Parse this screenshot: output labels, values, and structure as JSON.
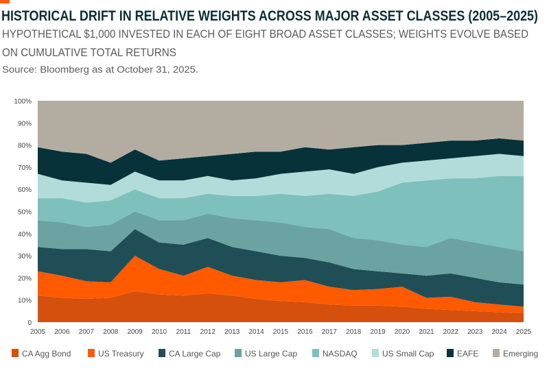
{
  "header": {
    "title": "HISTORICAL DRIFT IN RELATIVE WEIGHTS ACROSS MAJOR ASSET CLASSES (2005–2025)",
    "subtitle_line1": "HYPOTHETICAL $1,000 INVESTED IN EACH OF EIGHT BROAD ASSET CLASSES; WEIGHTS EVOLVE BASED",
    "subtitle_line2": "ON CUMULATIVE TOTAL RETURNS",
    "source": "Source: Bloomberg as at October 31, 2025.",
    "accent_color": "#ff5a00"
  },
  "chart_data": {
    "type": "area",
    "stacked": true,
    "normalized": true,
    "x": [
      2005,
      2006,
      2007,
      2008,
      2009,
      2010,
      2011,
      2012,
      2013,
      2014,
      2015,
      2016,
      2017,
      2018,
      2019,
      2020,
      2021,
      2022,
      2023,
      2024,
      2025
    ],
    "x_tick_labels": [
      "2005",
      "2006",
      "2007",
      "2008",
      "2009",
      "2010",
      "2011",
      "2012",
      "2013",
      "2014",
      "2015",
      "2016",
      "2017",
      "2018",
      "2019",
      "2020",
      "2021",
      "2022",
      "2023",
      "2024",
      "2025"
    ],
    "y_tick_labels": [
      "0",
      "10%",
      "20%",
      "30%",
      "40%",
      "50%",
      "60%",
      "70%",
      "80%",
      "90%",
      "100%"
    ],
    "ylim": [
      0,
      100
    ],
    "grid": false,
    "legend_position": "bottom",
    "series": [
      {
        "name": "CA Agg Bond",
        "color": "#d4500c",
        "values": [
          12,
          11,
          10.5,
          11,
          14,
          12.5,
          12,
          13,
          12,
          10.5,
          9.5,
          9,
          8,
          7.5,
          7.5,
          7,
          6,
          5.5,
          5,
          4.5,
          4
        ]
      },
      {
        "name": "US Treasury",
        "color": "#ff5a00",
        "values": [
          11,
          10,
          8,
          7,
          16,
          11.5,
          9,
          12,
          9,
          8.5,
          8.5,
          10,
          8,
          7,
          7.5,
          9,
          5,
          6,
          4,
          3.5,
          3
        ]
      },
      {
        "name": "CA Large Cap",
        "color": "#1f4e56",
        "values": [
          11,
          12,
          14.5,
          14,
          12,
          12,
          14,
          13,
          13,
          13,
          12,
          10,
          11,
          9.5,
          8,
          6,
          10,
          10.5,
          11,
          10,
          10
        ]
      },
      {
        "name": "US Large Cap",
        "color": "#6aa3a1",
        "values": [
          12,
          12,
          10,
          12,
          8,
          10,
          11,
          11,
          13,
          14,
          15,
          14,
          15,
          14,
          14,
          13,
          13,
          16,
          16,
          16,
          15
        ]
      },
      {
        "name": "NASDAQ",
        "color": "#7dc0bc",
        "values": [
          10,
          11,
          11,
          11,
          10,
          10,
          10,
          9,
          10,
          11,
          13,
          14,
          16,
          19,
          22,
          28,
          30,
          27,
          29,
          32,
          34
        ]
      },
      {
        "name": "US Small Cap",
        "color": "#b2dcd9",
        "values": [
          11,
          8,
          9,
          7,
          8,
          8,
          8,
          8,
          7,
          8,
          9,
          11,
          11,
          10,
          11,
          9,
          9,
          9,
          10,
          10,
          9
        ]
      },
      {
        "name": "EAFE",
        "color": "#07323a",
        "values": [
          12,
          13,
          13,
          10,
          10,
          9,
          10,
          9,
          12,
          12,
          10,
          11,
          9,
          12,
          10,
          8,
          8,
          8,
          7,
          7,
          7
        ]
      },
      {
        "name": "Emerging",
        "color": "#b3ada1",
        "values": [
          21,
          23,
          24,
          28,
          22,
          27,
          26,
          25,
          24,
          23,
          23,
          21,
          22,
          21,
          20,
          20,
          19,
          18,
          18,
          17,
          18
        ]
      }
    ]
  }
}
